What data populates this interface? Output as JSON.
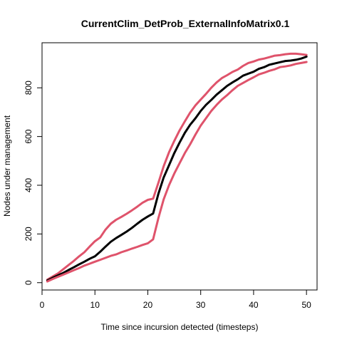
{
  "chart_data": {
    "type": "line",
    "title": "CurrentClim_DetProb_ExternalInfoMatrix0.1",
    "xlabel": "Time since incursion detected (timesteps)",
    "ylabel": "Nodes under management",
    "xlim": [
      0,
      52
    ],
    "ylim": [
      -30,
      985
    ],
    "xticks": [
      0,
      10,
      20,
      30,
      40,
      50
    ],
    "yticks": [
      0,
      200,
      400,
      600,
      800
    ],
    "grid": false,
    "legend": "none",
    "x": [
      1,
      2,
      3,
      4,
      5,
      6,
      7,
      8,
      9,
      10,
      11,
      12,
      13,
      14,
      15,
      16,
      17,
      18,
      19,
      20,
      21,
      22,
      23,
      24,
      25,
      26,
      27,
      28,
      29,
      30,
      31,
      32,
      33,
      34,
      35,
      36,
      37,
      38,
      39,
      40,
      41,
      42,
      43,
      44,
      45,
      46,
      47,
      48,
      49,
      50
    ],
    "series": [
      {
        "color": "#df536b",
        "values": [
          12,
          25,
          38,
          55,
          72,
          89,
          108,
          125,
          148,
          170,
          186,
          218,
          242,
          258,
          270,
          283,
          297,
          312,
          328,
          340,
          345,
          410,
          478,
          535,
          582,
          625,
          662,
          698,
          728,
          752,
          775,
          800,
          822,
          840,
          852,
          865,
          875,
          890,
          902,
          908,
          916,
          920,
          926,
          932,
          934,
          938,
          940,
          940,
          938,
          935
        ]
      },
      {
        "color": "#000000",
        "values": [
          9,
          20,
          30,
          40,
          52,
          63,
          75,
          86,
          98,
          108,
          127,
          148,
          168,
          183,
          196,
          210,
          225,
          242,
          258,
          272,
          284,
          365,
          432,
          482,
          532,
          575,
          615,
          648,
          675,
          705,
          730,
          750,
          772,
          790,
          808,
          822,
          835,
          850,
          858,
          866,
          878,
          885,
          895,
          900,
          905,
          910,
          912,
          915,
          920,
          928
        ]
      },
      {
        "color": "#df536b",
        "values": [
          5,
          15,
          24,
          33,
          42,
          51,
          60,
          70,
          78,
          86,
          94,
          102,
          110,
          116,
          125,
          132,
          140,
          147,
          155,
          162,
          178,
          265,
          342,
          400,
          448,
          490,
          532,
          568,
          608,
          645,
          675,
          705,
          730,
          752,
          770,
          790,
          808,
          820,
          832,
          843,
          855,
          862,
          870,
          876,
          885,
          888,
          892,
          898,
          902,
          906
        ]
      }
    ]
  }
}
